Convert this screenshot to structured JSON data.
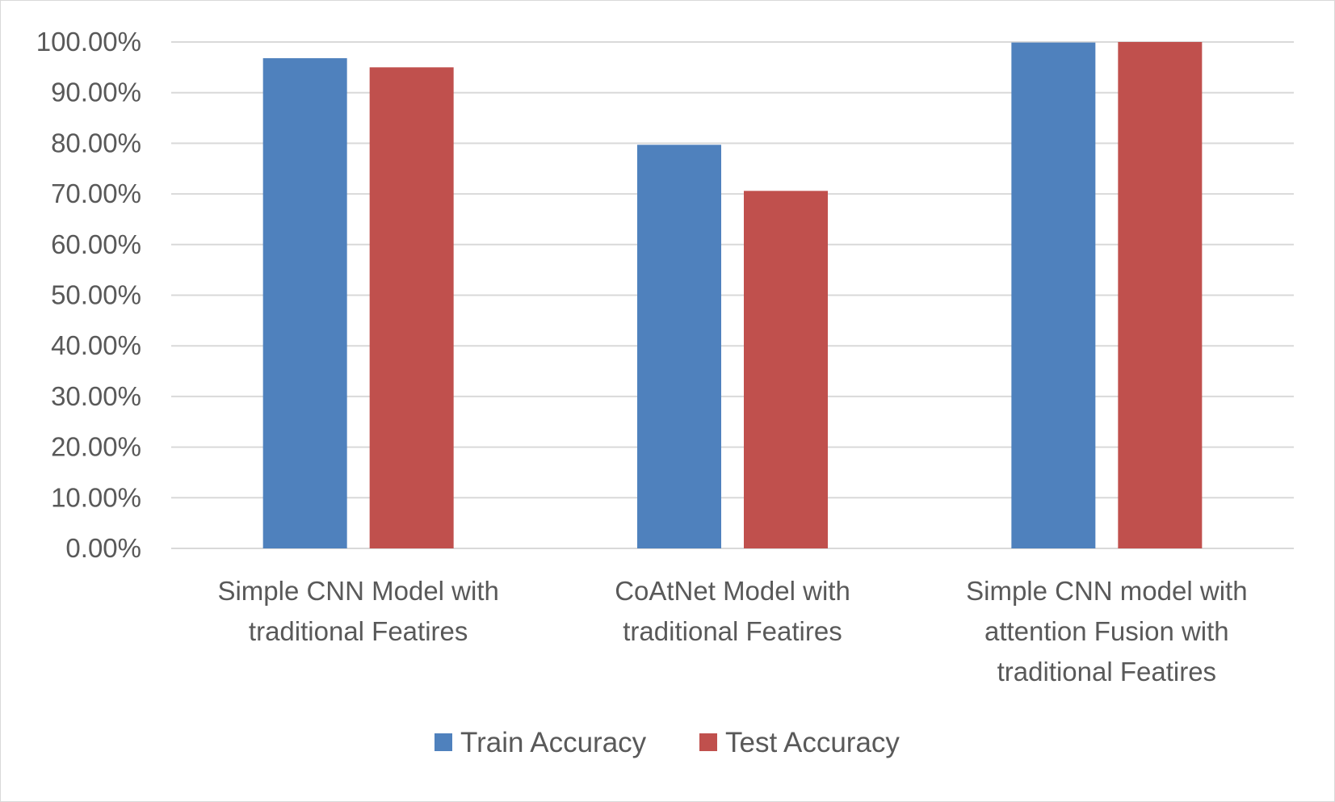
{
  "chart_data": {
    "type": "bar",
    "title": "",
    "xlabel": "",
    "ylabel": "",
    "categories": [
      [
        "Simple CNN Model with",
        "traditional Featires"
      ],
      [
        "CoAtNet Model with",
        "traditional Featires"
      ],
      [
        "Simple CNN model with",
        "attention Fusion  with",
        "traditional Featires"
      ]
    ],
    "series": [
      {
        "name": "Train Accuracy",
        "color": "#4f81bd",
        "values": [
          96.8,
          79.7,
          99.9
        ]
      },
      {
        "name": "Test Accuracy",
        "color": "#c0504d",
        "values": [
          95.0,
          70.6,
          100.0
        ]
      }
    ],
    "ylim": [
      0,
      100
    ],
    "yticks": [
      "0.00%",
      "10.00%",
      "20.00%",
      "30.00%",
      "40.00%",
      "50.00%",
      "60.00%",
      "70.00%",
      "80.00%",
      "90.00%",
      "100.00%"
    ],
    "grid": true,
    "gridline_color": "#d9d9d9",
    "legend_position": "bottom"
  }
}
